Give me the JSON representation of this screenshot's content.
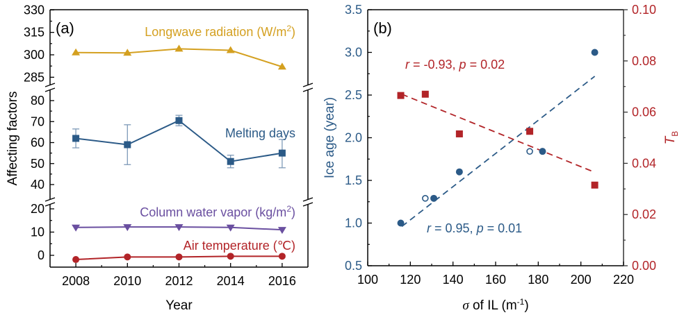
{
  "chart_data": [
    {
      "type": "line",
      "panel_label": "(a)",
      "xlabel": "Year",
      "ylabel": "Affecting factors",
      "x": [
        2008,
        2010,
        2012,
        2014,
        2016
      ],
      "xlim": [
        2007,
        2017
      ],
      "x_ticks": [
        "2008",
        "2010",
        "2012",
        "2014",
        "2016"
      ],
      "broken_y_axis": true,
      "segments": [
        {
          "ylim": [
            285,
            330
          ],
          "ticks": [
            "285",
            "300",
            "315",
            "330"
          ],
          "tick_values": [
            285,
            300,
            315,
            330
          ]
        },
        {
          "ylim": [
            36,
            84
          ],
          "ticks": [
            "40",
            "50",
            "60",
            "70",
            "80"
          ],
          "tick_values": [
            40,
            50,
            60,
            70,
            80
          ]
        },
        {
          "ylim": [
            -5,
            24
          ],
          "ticks": [
            "0",
            "10",
            "20"
          ],
          "tick_values": [
            0,
            10,
            20
          ]
        }
      ],
      "series": [
        {
          "name": "Longwave radiation (W/m2)",
          "label_main": "Longwave radiation (W/m",
          "label_sup": "2",
          "label_end": ")",
          "segment": 0,
          "marker": "triangle-up",
          "color": "#D4A020",
          "values": [
            301.5,
            301.3,
            304.0,
            303.0,
            292.0
          ]
        },
        {
          "name": "Melting days",
          "label_main": "Melting days",
          "label_sup": "",
          "label_end": "",
          "segment": 1,
          "marker": "square",
          "color": "#2B5A87",
          "values": [
            62,
            59,
            70.5,
            51,
            55
          ],
          "error_low": [
            57.5,
            49.5,
            68,
            48,
            48
          ],
          "error_high": [
            66.5,
            68.5,
            73,
            54,
            61.5
          ]
        },
        {
          "name": "Column water vapor (kg/m2)",
          "label_main": "Column water vapor (kg/m",
          "label_sup": "2",
          "label_end": ")",
          "segment": 2,
          "marker": "triangle-down",
          "color": "#6A4FA0",
          "values": [
            12.0,
            12.2,
            12.2,
            12.0,
            11.0
          ]
        },
        {
          "name": "Air temperature (℃)",
          "label_main": "Air temperature (℃)",
          "label_sup": "",
          "label_end": "",
          "segment": 2,
          "marker": "circle",
          "color": "#B22428",
          "values": [
            -1.8,
            -0.7,
            -0.7,
            -0.4,
            -0.4
          ]
        }
      ]
    },
    {
      "type": "scatter",
      "panel_label": "(b)",
      "xlabel_sigma": "σ",
      "xlabel_main": " of IL (m",
      "xlabel_sup": "-1",
      "xlabel_end": ")",
      "ylabel": "Ice age (year)",
      "y2label_main": "T",
      "y2label_sub": "B",
      "xlim": [
        100,
        220
      ],
      "x_ticks": [
        "100",
        "120",
        "140",
        "160",
        "180",
        "200",
        "220"
      ],
      "ylim": [
        0.5,
        3.5
      ],
      "y_ticks": [
        "0.5",
        "1.0",
        "1.5",
        "2.0",
        "2.5",
        "3.0",
        "3.5"
      ],
      "y2lim": [
        0.0,
        0.1
      ],
      "y2_ticks": [
        "0.00",
        "0.02",
        "0.04",
        "0.06",
        "0.08",
        "0.10"
      ],
      "series": [
        {
          "name": "Ice age (filled)",
          "axis": "left",
          "marker": "circle-filled",
          "color": "#2B5A87",
          "x": [
            115.5,
            131,
            143,
            182,
            206.5
          ],
          "y": [
            1.0,
            1.29,
            1.6,
            1.84,
            3.0
          ]
        },
        {
          "name": "Ice age (open)",
          "axis": "left",
          "marker": "circle-open",
          "color": "#2B5A87",
          "x": [
            127,
            176
          ],
          "y": [
            1.29,
            1.84
          ]
        },
        {
          "name": "T_B",
          "axis": "right",
          "marker": "square",
          "color": "#B22428",
          "x": [
            115.5,
            127,
            143,
            176,
            206.5
          ],
          "y": [
            0.0665,
            0.067,
            0.0515,
            0.0525,
            0.0315
          ]
        }
      ],
      "fits": [
        {
          "name": "Ice age fit",
          "axis": "left",
          "color": "#2B5A87",
          "x": [
            116,
            206.5
          ],
          "y": [
            0.96,
            2.72
          ],
          "annotation_r": "r",
          "annotation_r_val": " = 0.95, ",
          "annotation_p": "p",
          "annotation_p_val": " = 0.01"
        },
        {
          "name": "T_B fit",
          "axis": "right",
          "color": "#B22428",
          "x": [
            116,
            206.5
          ],
          "y": [
            0.067,
            0.0365
          ],
          "annotation_r": "r",
          "annotation_r_val": " = -0.93, ",
          "annotation_p": "p",
          "annotation_p_val": " = 0.02"
        }
      ]
    }
  ]
}
